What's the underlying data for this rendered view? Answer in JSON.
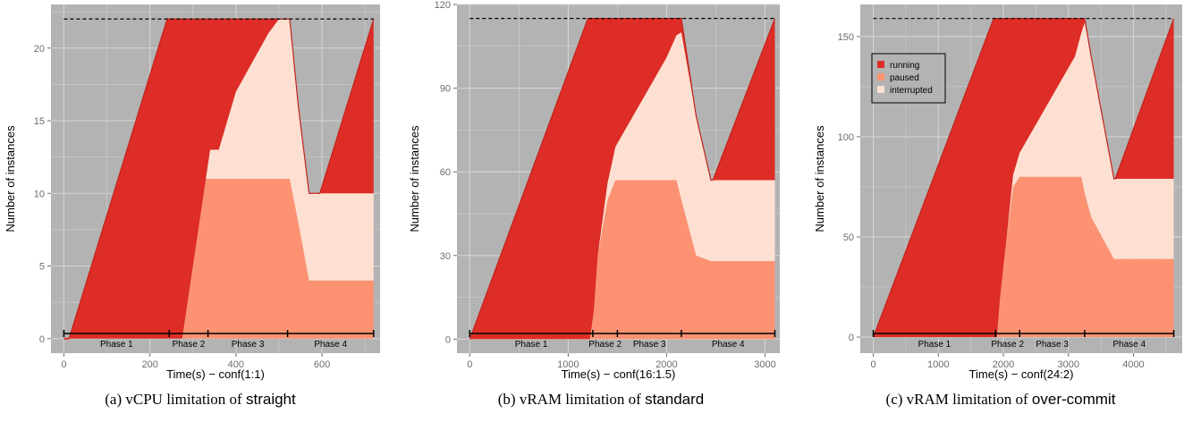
{
  "chart_data": [
    {
      "type": "area",
      "xlabel": "Time(s) − conf(1:1)",
      "ylabel": "Number of instances",
      "xlim": [
        -30,
        735
      ],
      "ylim": [
        -1,
        23
      ],
      "xticks": [
        0,
        200,
        400,
        600
      ],
      "yticks": [
        0,
        5,
        10,
        15,
        20
      ],
      "capacity": 22,
      "step": true,
      "phases": [
        {
          "label": "Phase 1",
          "start": 0,
          "end": 245
        },
        {
          "label": "Phase 2",
          "start": 245,
          "end": 335
        },
        {
          "label": "Phase 3",
          "start": 335,
          "end": 520
        },
        {
          "label": "Phase 4",
          "start": 520,
          "end": 720
        }
      ],
      "x": [
        0,
        12,
        240,
        260,
        275,
        330,
        340,
        360,
        400,
        475,
        500,
        515,
        525,
        545,
        570,
        585,
        595,
        720
      ],
      "paused": [
        0,
        0,
        0,
        0,
        0,
        11,
        11,
        11,
        11,
        11,
        11,
        11,
        11,
        8,
        4,
        4,
        4,
        4
      ],
      "interrupted": [
        0,
        0,
        0,
        0,
        0,
        0,
        2,
        2,
        6,
        10,
        11,
        11,
        11,
        8,
        6,
        6,
        6,
        6
      ],
      "running": [
        0,
        0,
        22,
        22,
        22,
        11,
        9,
        9,
        5,
        1,
        0,
        0,
        0,
        0,
        0,
        0,
        0,
        12
      ],
      "zero_line_until": 12,
      "caption": {
        "prefix": "(a) vCPU limitation of ",
        "term": "straight"
      }
    },
    {
      "type": "area",
      "xlabel": "Time(s) − conf(16:1.5)",
      "ylabel": "Number of instances",
      "xlim": [
        -130,
        3150
      ],
      "ylim": [
        -5,
        120
      ],
      "xticks": [
        0,
        1000,
        2000,
        3000
      ],
      "yticks": [
        0,
        30,
        60,
        90,
        120
      ],
      "capacity": 115,
      "step": false,
      "phases": [
        {
          "label": "Phase 1",
          "start": 0,
          "end": 1250
        },
        {
          "label": "Phase 2",
          "start": 1250,
          "end": 1500
        },
        {
          "label": "Phase 3",
          "start": 1500,
          "end": 2150
        },
        {
          "label": "Phase 4",
          "start": 2150,
          "end": 3100
        }
      ],
      "x": [
        0,
        1200,
        1220,
        1260,
        1300,
        1400,
        1480,
        2000,
        2100,
        2150,
        2300,
        2450,
        2470,
        3100
      ],
      "paused": [
        0,
        0,
        0,
        10,
        30,
        50,
        57,
        57,
        57,
        50,
        30,
        28,
        28,
        28
      ],
      "interrupted": [
        0,
        0,
        0,
        0,
        0,
        6,
        12,
        44,
        52,
        60,
        50,
        29,
        29,
        29
      ],
      "running": [
        0,
        115,
        115,
        105,
        85,
        59,
        46,
        14,
        6,
        5,
        0,
        0,
        0,
        58
      ],
      "zero_line_until": 0,
      "caption": {
        "prefix": "(b) vRAM limitation of ",
        "term": "standard"
      }
    },
    {
      "type": "area",
      "xlabel": "Time(s) − conf(24:2)",
      "ylabel": "Number of instances",
      "xlim": [
        -200,
        4750
      ],
      "ylim": [
        -8,
        166
      ],
      "xticks": [
        0,
        1000,
        2000,
        3000,
        4000
      ],
      "yticks": [
        0,
        50,
        100,
        150
      ],
      "capacity": 159,
      "step": false,
      "legend": {
        "placement": "top-left",
        "entries": [
          "running",
          "paused",
          "interrupted"
        ]
      },
      "phases": [
        {
          "label": "Phase 1",
          "start": 0,
          "end": 1880
        },
        {
          "label": "Phase 2",
          "start": 1880,
          "end": 2250
        },
        {
          "label": "Phase 3",
          "start": 2250,
          "end": 3250
        },
        {
          "label": "Phase 4",
          "start": 3250,
          "end": 4620
        }
      ],
      "x": [
        0,
        1850,
        1900,
        1950,
        2050,
        2150,
        2250,
        3100,
        3200,
        3250,
        3350,
        3700,
        3720,
        4620
      ],
      "paused": [
        0,
        0,
        0,
        20,
        50,
        75,
        80,
        80,
        80,
        72,
        60,
        39,
        39,
        39
      ],
      "interrupted": [
        0,
        0,
        0,
        0,
        0,
        6,
        12,
        60,
        72,
        85,
        80,
        40,
        40,
        40
      ],
      "running": [
        0,
        159,
        159,
        139,
        109,
        78,
        67,
        19,
        7,
        2,
        0,
        0,
        0,
        80
      ],
      "zero_line_until": 0,
      "caption": {
        "prefix": "(c) vRAM limitation of ",
        "term": "over-commit"
      }
    }
  ],
  "colors": {
    "running": "#de2d26",
    "paused": "#fc9272",
    "interrupted": "#fee0d2",
    "panel_bg": "#b3b3b3",
    "grid": "#d4d4d4",
    "axis_text": "#6d6d6d"
  }
}
